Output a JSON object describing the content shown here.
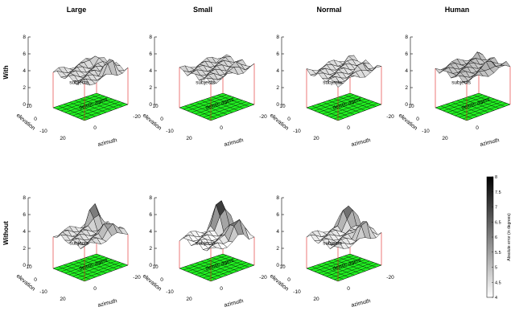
{
  "chart_data": {
    "type": "surface-3d-grid",
    "columns": [
      "Large",
      "Small",
      "Normal",
      "Human"
    ],
    "rows": [
      "With",
      "Without"
    ],
    "zlim": [
      0,
      8
    ],
    "z_ticks": [
      "0",
      "2",
      "4",
      "6",
      "8"
    ],
    "elevation_ticks": [
      "10",
      "0",
      "-10"
    ],
    "azimuth_ticks": [
      "20",
      "0",
      "-20"
    ],
    "xlabel": "azimuth",
    "ylabel": "elevation",
    "floor_label": "deictic agent",
    "surface_label": "subjects",
    "colorbar": {
      "label": "Absolute error (in degrees)",
      "range": [
        4,
        8
      ],
      "ticks": [
        "4",
        "4.5",
        "5",
        "5.5",
        "6",
        "6.5",
        "7",
        "7.5",
        "8"
      ]
    },
    "panels": [
      {
        "row": "With",
        "column": "Large",
        "peak_left": 5.2,
        "peak_right": 5.6,
        "valley": 4.2,
        "shade": 0.55
      },
      {
        "row": "With",
        "column": "Small",
        "peak_left": 4.8,
        "peak_right": 5.1,
        "valley": 4.5,
        "shade": 0.45
      },
      {
        "row": "With",
        "column": "Normal",
        "peak_left": 4.7,
        "peak_right": 5.0,
        "valley": 4.3,
        "shade": 0.45
      },
      {
        "row": "With",
        "column": "Human",
        "peak_left": 5.0,
        "peak_right": 5.5,
        "valley": 4.6,
        "shade": 0.6
      },
      {
        "row": "Without",
        "column": "Large",
        "peak_left": 6.2,
        "peak_right": 5.6,
        "valley": 4.0,
        "shade": 0.7
      },
      {
        "row": "Without",
        "column": "Small",
        "peak_left": 6.9,
        "peak_right": 5.8,
        "valley": 3.6,
        "shade": 0.85
      },
      {
        "row": "Without",
        "column": "Normal",
        "peak_left": 6.5,
        "peak_right": 5.5,
        "valley": 3.8,
        "shade": 0.75
      }
    ]
  }
}
